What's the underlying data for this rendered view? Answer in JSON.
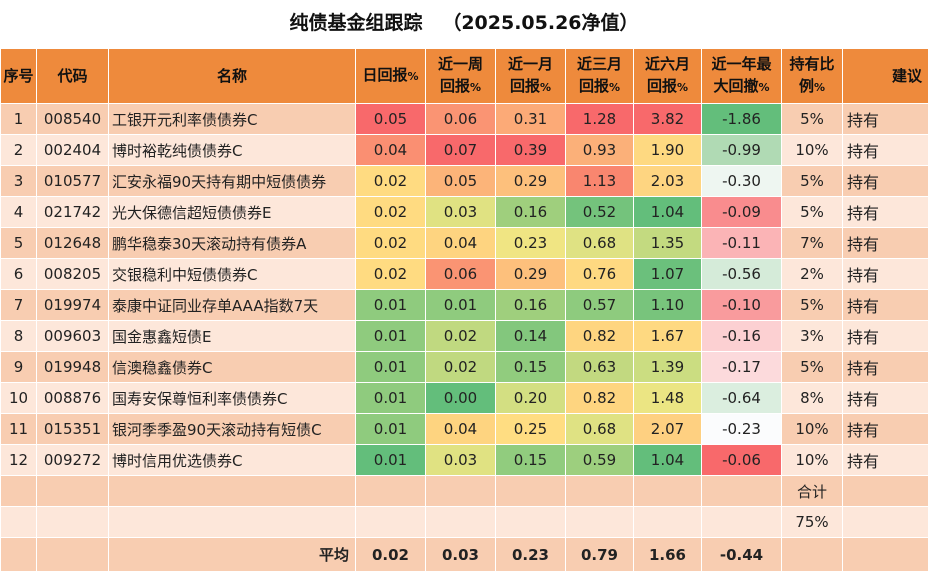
{
  "title": "纯债基金组跟踪   （2025.05.26净值）",
  "headers": {
    "seq": "序号",
    "code": "代码",
    "name": "名称",
    "daily": "日回报",
    "week_l1": "近一周",
    "week_l2": "回报",
    "month_l1": "近一月",
    "month_l2": "回报",
    "m3_l1": "近三月",
    "m3_l2": "回报",
    "m6_l1": "近六月",
    "m6_l2": "回报",
    "dd_l1": "近一年最",
    "dd_l2": "大回撤",
    "hold_l1": "持有比",
    "hold_l2": "例",
    "suggest": "建议",
    "pct": "%"
  },
  "rows": [
    {
      "seq": "1",
      "code": "008540",
      "name": "工银开元利率债债券C",
      "daily": "0.05",
      "week": "0.06",
      "month": "0.31",
      "m3": "1.28",
      "m6": "3.82",
      "dd": "-1.86",
      "hold": "5%",
      "suggest": "持有",
      "colors": [
        "#f8696b",
        "#fa9473",
        "#fcaa77",
        "#f8696b",
        "#f8696b",
        "#63be7b"
      ]
    },
    {
      "seq": "2",
      "code": "002404",
      "name": "博时裕乾纯债债券C",
      "daily": "0.04",
      "week": "0.07",
      "month": "0.39",
      "m3": "0.93",
      "m6": "1.90",
      "dd": "-0.99",
      "hold": "10%",
      "suggest": "持有",
      "colors": [
        "#fa8f72",
        "#f8696b",
        "#f8696b",
        "#fbb079",
        "#fed981",
        "#b0dab4"
      ]
    },
    {
      "seq": "3",
      "code": "010577",
      "name": "汇安永福90天持有期中短债债券",
      "daily": "0.02",
      "week": "0.05",
      "month": "0.29",
      "m3": "1.13",
      "m6": "2.03",
      "dd": "-0.30",
      "hold": "5%",
      "suggest": "持有",
      "colors": [
        "#ffdb81",
        "#fcb479",
        "#fdc07c",
        "#f9866f",
        "#fed581",
        "#eef6f1"
      ]
    },
    {
      "seq": "4",
      "code": "021742",
      "name": "光大保德信超短债债券E",
      "daily": "0.02",
      "week": "0.03",
      "month": "0.16",
      "m3": "0.52",
      "m6": "1.04",
      "dd": "-0.09",
      "hold": "5%",
      "suggest": "持有",
      "colors": [
        "#ffdb81",
        "#e0e282",
        "#9fcf7d",
        "#74c37c",
        "#63be7b",
        "#f98c8e"
      ]
    },
    {
      "seq": "5",
      "code": "012648",
      "name": "鹏华稳泰30天滚动持有债券A",
      "daily": "0.02",
      "week": "0.04",
      "month": "0.23",
      "m3": "0.68",
      "m6": "1.35",
      "dd": "-0.11",
      "hold": "7%",
      "suggest": "持有",
      "colors": [
        "#ffdb81",
        "#fed480",
        "#f0e583",
        "#dfe283",
        "#c3da80",
        "#fbb4b6"
      ]
    },
    {
      "seq": "6",
      "code": "008205",
      "name": "交银稳利中短债债券C",
      "daily": "0.02",
      "week": "0.06",
      "month": "0.29",
      "m3": "0.76",
      "m6": "1.07",
      "dd": "-0.56",
      "hold": "2%",
      "suggest": "持有",
      "colors": [
        "#ffdb81",
        "#fa9473",
        "#fdc07c",
        "#fed981",
        "#6bc07c",
        "#d5ebd9"
      ]
    },
    {
      "seq": "7",
      "code": "019974",
      "name": "泰康中证同业存单AAA指数7天",
      "daily": "0.01",
      "week": "0.01",
      "month": "0.16",
      "m3": "0.57",
      "m6": "1.10",
      "dd": "-0.10",
      "hold": "5%",
      "suggest": "持有",
      "colors": [
        "#8fcb7e",
        "#8fcb7e",
        "#9fcf7d",
        "#8ecb7e",
        "#78c47c",
        "#f99b9d"
      ]
    },
    {
      "seq": "8",
      "code": "009603",
      "name": "国金惠鑫短债E",
      "daily": "0.01",
      "week": "0.02",
      "month": "0.14",
      "m3": "0.82",
      "m6": "1.67",
      "dd": "-0.16",
      "hold": "3%",
      "suggest": "持有",
      "colors": [
        "#8fcb7e",
        "#c0d980",
        "#83c77d",
        "#fed580",
        "#fed981",
        "#fcd0d2"
      ]
    },
    {
      "seq": "9",
      "code": "019948",
      "name": "信澳稳鑫债券C",
      "daily": "0.01",
      "week": "0.02",
      "month": "0.15",
      "m3": "0.63",
      "m6": "1.39",
      "dd": "-0.17",
      "hold": "5%",
      "suggest": "持有",
      "colors": [
        "#8fcb7e",
        "#c0d980",
        "#91cc7e",
        "#c2d980",
        "#cbdd81",
        "#fcdadc"
      ]
    },
    {
      "seq": "10",
      "code": "008876",
      "name": "国寿安保尊恒利率债债券C",
      "daily": "0.01",
      "week": "0.00",
      "month": "0.20",
      "m3": "0.82",
      "m6": "1.48",
      "dd": "-0.64",
      "hold": "8%",
      "suggest": "持有",
      "colors": [
        "#8fcb7e",
        "#63be7b",
        "#d3df82",
        "#fed580",
        "#ebe583",
        "#dbeedf"
      ]
    },
    {
      "seq": "11",
      "code": "015351",
      "name": "银河季季盈90天滚动持有短债C",
      "daily": "0.01",
      "week": "0.04",
      "month": "0.25",
      "m3": "0.68",
      "m6": "2.07",
      "dd": "-0.23",
      "hold": "10%",
      "suggest": "持有",
      "colors": [
        "#8fcb7e",
        "#fed480",
        "#ffdd82",
        "#dfe283",
        "#fed081",
        "#fbfcfd"
      ]
    },
    {
      "seq": "12",
      "code": "009272",
      "name": "博时信用优选债券C",
      "daily": "0.01",
      "week": "0.03",
      "month": "0.15",
      "m3": "0.59",
      "m6": "1.04",
      "dd": "-0.06",
      "hold": "10%",
      "suggest": "持有",
      "colors": [
        "#63be7b",
        "#e0e282",
        "#91cc7e",
        "#9dcf7e",
        "#63be7b",
        "#f8696b"
      ]
    }
  ],
  "footer": {
    "sum_label": "合计",
    "sum_value": "75%",
    "avg_label": "平均",
    "avg_daily": "0.02",
    "avg_week": "0.03",
    "avg_month": "0.23",
    "avg_m3": "0.79",
    "avg_m6": "1.66",
    "avg_dd": "-0.44"
  },
  "colors": {
    "header_bg": "#ee8a3c",
    "row_odd": "#f8cdb1",
    "row_even": "#fde7da"
  }
}
